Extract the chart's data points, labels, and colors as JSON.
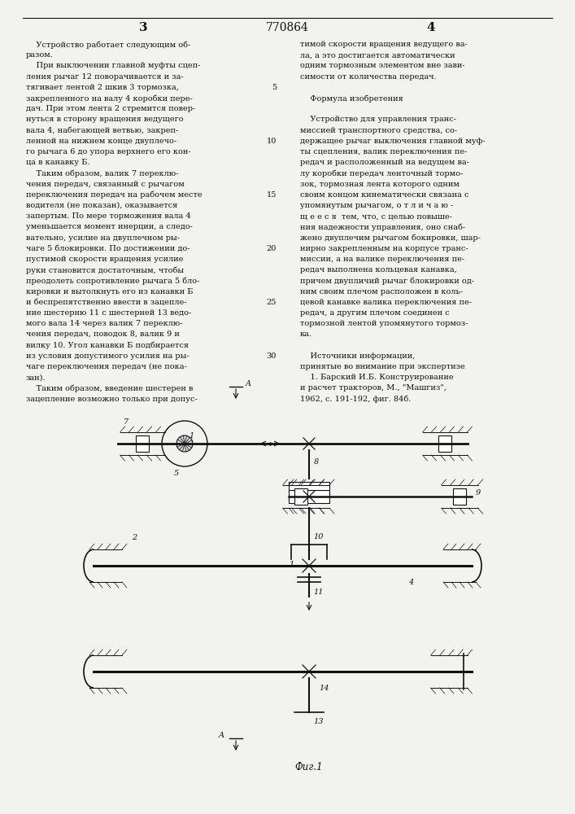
{
  "page_number_left": "3",
  "page_number_center": "770864",
  "page_number_right": "4",
  "bg_color": "#f2f2ee",
  "text_color": "#111111",
  "line_color": "#111111",
  "fig_label": "Фиг.1",
  "left_col": [
    "    Устройство работает следующим об-",
    "разом.",
    "    При выключении главной муфты сцеп-",
    "ления рычаг 12 поворачивается и за-",
    "тягивает лентой 2 шкив 3 тормозка,",
    "закрепленного на валу 4 коробки пере-",
    "дач. При этом лента 2 стремится повер-",
    "нуться в сторону вращения ведущего",
    "вала 4, набегающей ветвью, закреп-",
    "ленной на нижнем конце двуплечо-",
    "го рычага 6 до упора верхнего его кон-",
    "ца в канавку Б.",
    "    Таким образом, валик 7 переклю-",
    "чения передач, связанный с рычагом",
    "переключения передач на рабочем месте",
    "водителя (не показан), оказывается",
    "запертым. По мере торможения вала 4",
    "уменьшается момент инерции, а следо-",
    "вательно, усилие на двуплечном ры-",
    "чаге 5 блокировки. По достижении до-",
    "пустимой скорости вращения усилие",
    "руки становится достаточным, чтобы",
    "преодолеть сопротивление рычага 5 бло-",
    "кировки и вытолкнуть его из канавки Б",
    "и беспрепятственно ввести в зацепле-",
    "ние шестерню 11 с шестерней 13 ведо-",
    "мого вала 14 через валик 7 переклю-",
    "чения передач, поводок 8, валик 9 и",
    "вилку 10. Угол канавки Б подбирается",
    "из условия допустимого усилия на ры-",
    "чаге переключения передач (не пока-",
    "зан).",
    "    Таким образом, введение шестерен в",
    "зацепление возможно только при допус-"
  ],
  "right_col": [
    "тимой скорости вращения ведущего ва-",
    "ла, а это достигается автоматически",
    "одним тормозным элементом вне зави-",
    "симости от количества передач.",
    "",
    "    Формула изобретения",
    "",
    "    Устройство для управления транс-",
    "миссией транспортного средства, со-",
    "держащее рычаг выключения главной муф-",
    "ты сцепления, валик переключения пе-",
    "редач и расположенный на ведущем ва-",
    "лу коробки передач ленточный тормо-",
    "зок, тормозная лента которого одним",
    "своим концом кинематически связана с",
    "упомянутым рычагом, о т л и ч а ю -",
    "щ е е с я  тем, что, с целью повыше-",
    "ния надежности управления, оно снаб-",
    "жено двуплечим рычагом бокировки, шар-",
    "нирно закрепленным на корпусе транс-",
    "миссии, а на валике переключения пе-",
    "редач выполнена кольцевая канавка,",
    "причем двупличий рычаг блокировки од-",
    "ним своим плечом расположен в коль-",
    "цевой канавке валика переключения пе-",
    "редач, а другим плечом соединен с",
    "тормозной лентой упомянутого тормоз-",
    "ка.",
    "",
    "    Источники информации,",
    "принятые во внимание при экспертизе",
    "    1. Барский И.Б. Конструирование",
    "и расчет тракторов, М., \"Машгиз\",",
    "1962, с. 191-192, фиг. 84б."
  ],
  "line_nums": [
    5,
    10,
    15,
    20,
    25,
    30
  ],
  "line_num_rows": [
    4,
    9,
    14,
    19,
    24,
    29
  ]
}
